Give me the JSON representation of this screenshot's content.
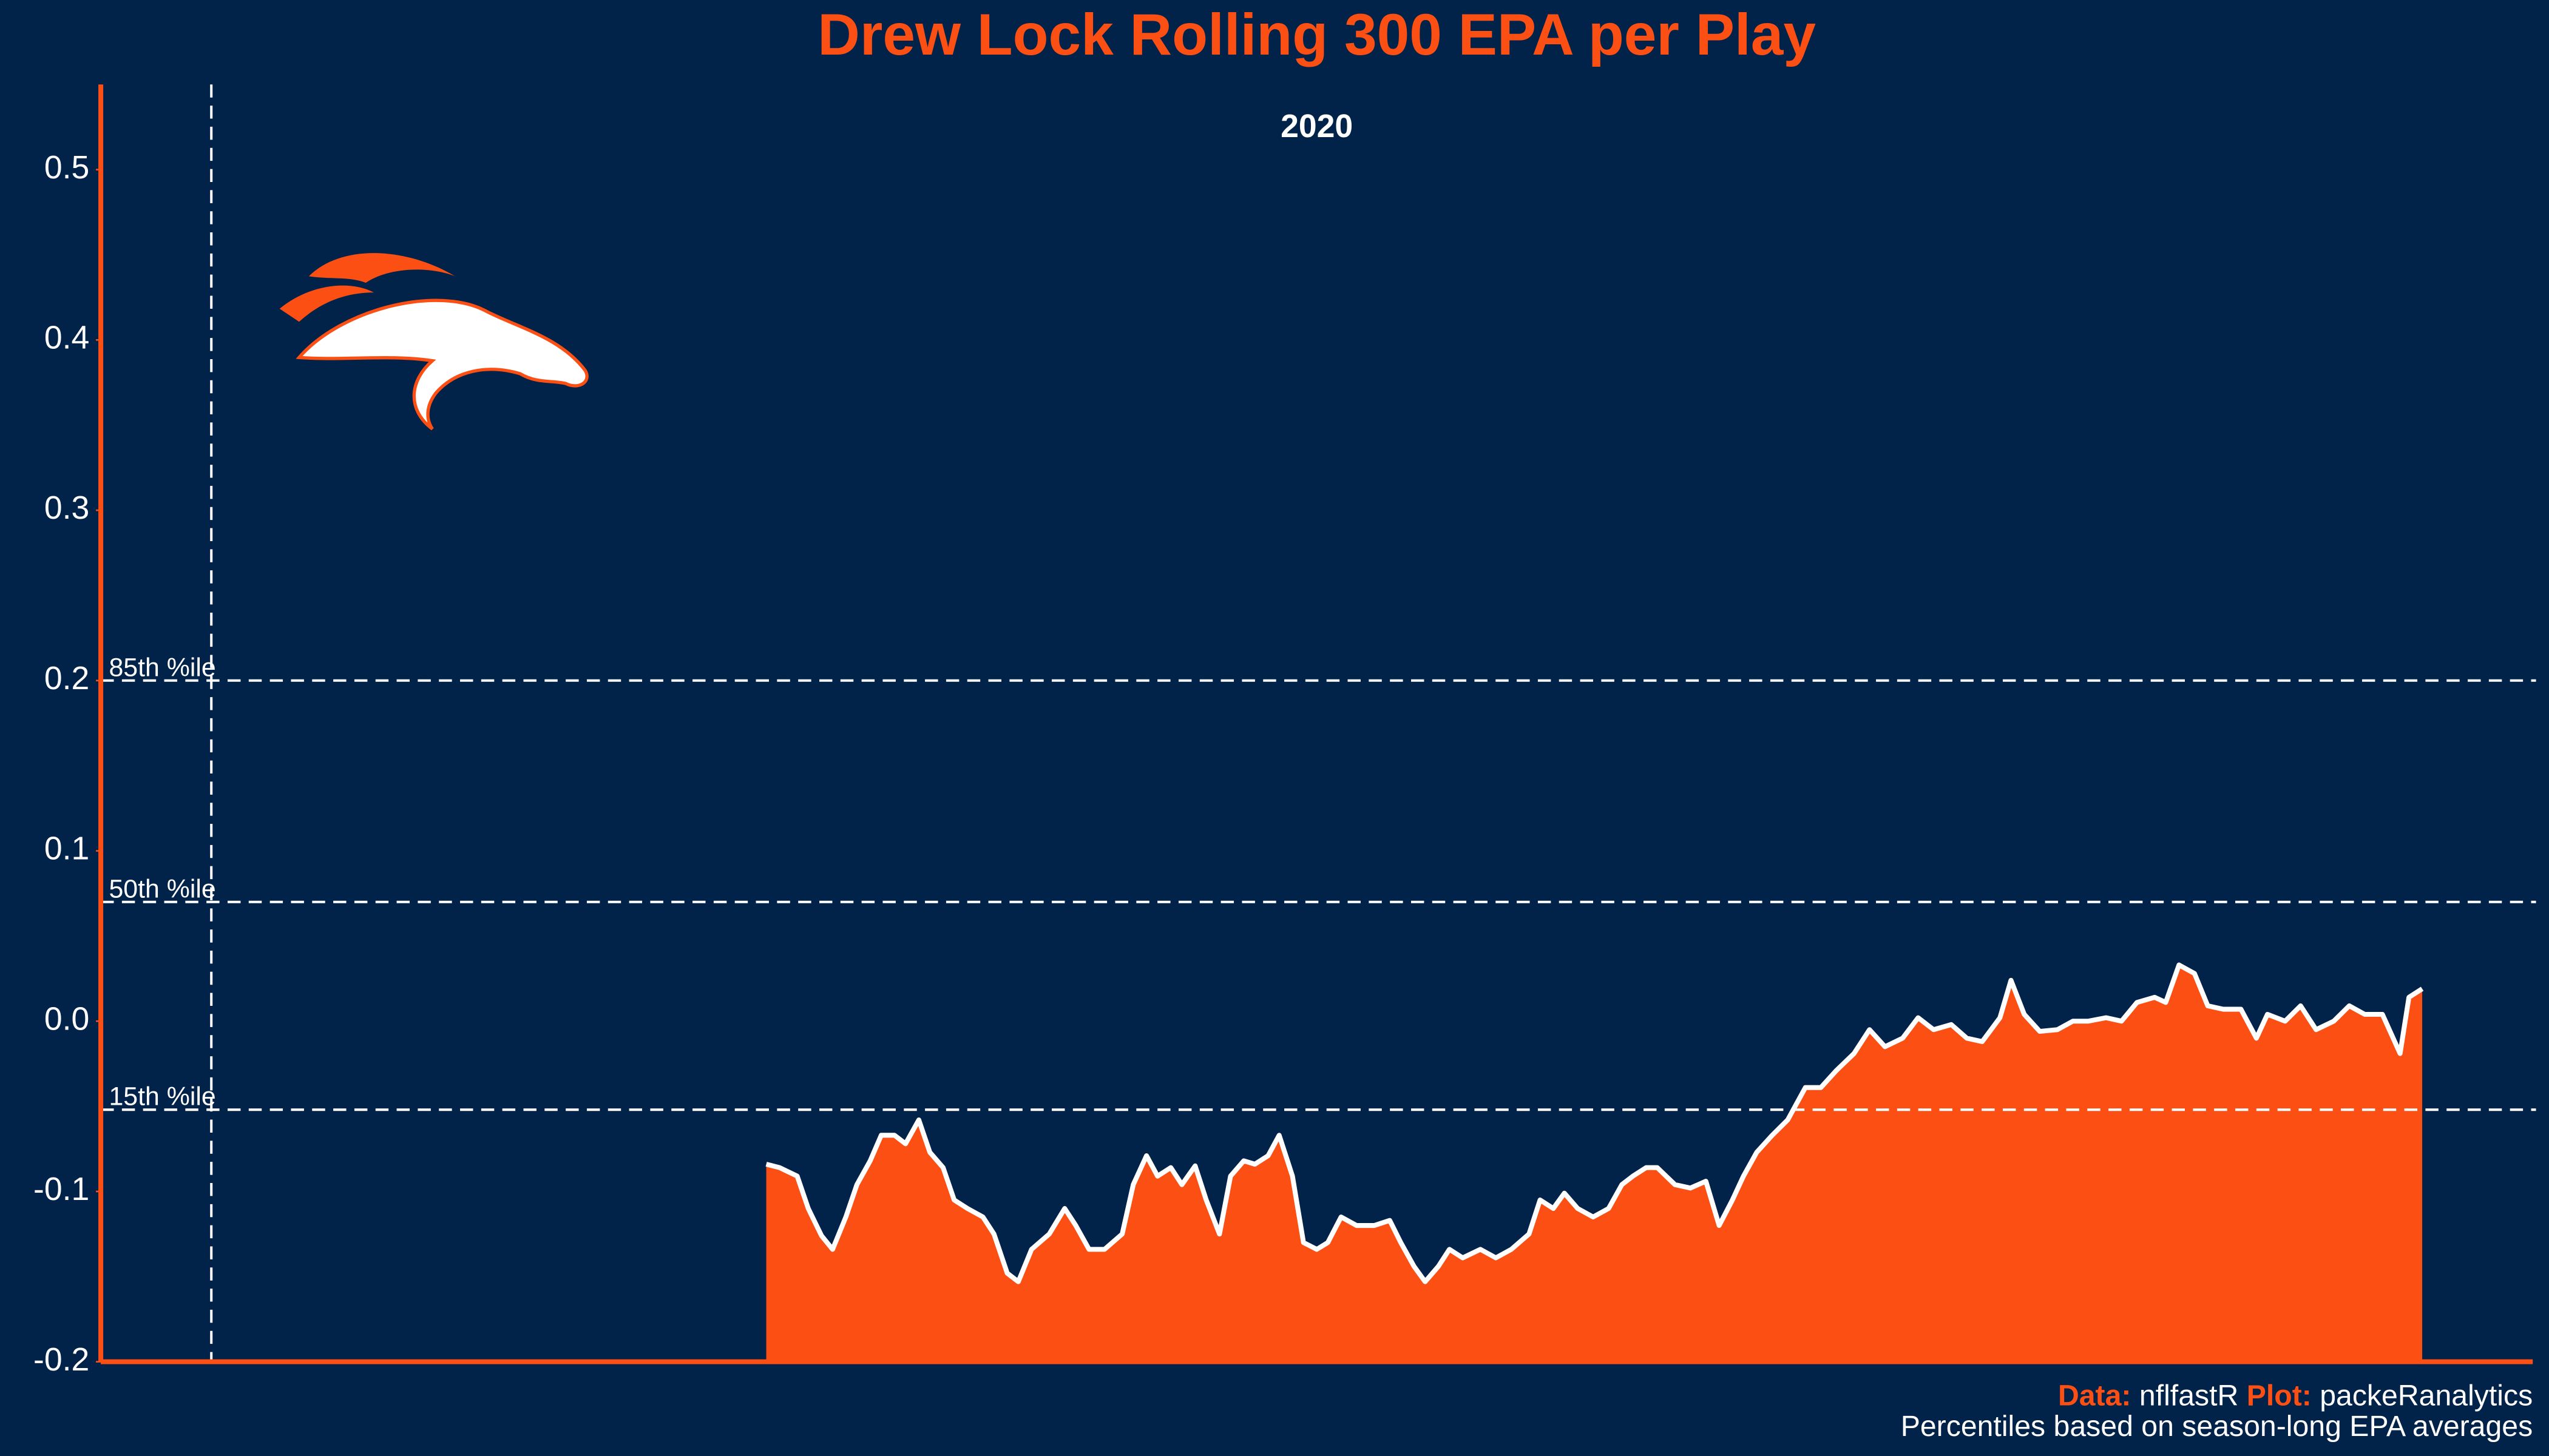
{
  "chart_data": {
    "type": "area",
    "title": "Drew Lock Rolling 300 EPA per Play",
    "subtitle": "2020",
    "background": "#01234a",
    "color": "#fb4f14",
    "line_color": "#ffffff",
    "axis_color": "#fb4f14",
    "x": [
      301,
      307,
      315,
      320,
      326,
      331,
      337,
      342,
      348,
      353,
      359,
      364,
      370,
      375,
      381,
      386,
      392,
      399,
      404,
      410,
      415,
      421,
      429,
      436,
      441,
      447,
      454,
      462,
      467,
      473,
      478,
      484,
      489,
      495,
      500,
      506,
      511,
      517,
      522,
      528,
      533,
      539,
      544,
      550,
      555,
      561,
      568,
      576,
      583,
      588,
      594,
      599,
      605,
      610,
      616,
      624,
      631,
      638,
      646,
      651,
      657,
      662,
      668,
      675,
      682,
      688,
      693,
      699,
      704,
      712,
      719,
      726,
      732,
      738,
      743,
      749,
      756,
      763,
      771,
      778,
      785,
      793,
      800,
      807,
      815,
      822,
      829,
      837,
      844,
      851,
      859,
      864,
      870,
      877,
      885,
      892,
      899,
      907,
      914,
      921,
      929,
      934,
      940,
      947,
      953,
      960,
      968,
      975,
      980,
      988,
      995,
      1002,
      1010,
      1017,
      1024,
      1032,
      1040,
      1044,
      1050
    ],
    "values": [
      -0.084,
      -0.086,
      -0.091,
      -0.11,
      -0.126,
      -0.134,
      -0.115,
      -0.096,
      -0.082,
      -0.067,
      -0.067,
      -0.072,
      -0.058,
      -0.077,
      -0.086,
      -0.105,
      -0.11,
      -0.115,
      -0.125,
      -0.148,
      -0.153,
      -0.134,
      -0.125,
      -0.11,
      -0.12,
      -0.134,
      -0.134,
      -0.125,
      -0.096,
      -0.079,
      -0.091,
      -0.086,
      -0.096,
      -0.085,
      -0.105,
      -0.125,
      -0.091,
      -0.082,
      -0.084,
      -0.079,
      -0.067,
      -0.091,
      -0.13,
      -0.134,
      -0.13,
      -0.115,
      -0.12,
      -0.12,
      -0.117,
      -0.13,
      -0.144,
      -0.153,
      -0.144,
      -0.134,
      -0.139,
      -0.134,
      -0.139,
      -0.134,
      -0.125,
      -0.105,
      -0.11,
      -0.101,
      -0.11,
      -0.115,
      -0.11,
      -0.096,
      -0.091,
      -0.086,
      -0.086,
      -0.096,
      -0.098,
      -0.094,
      -0.12,
      -0.105,
      -0.091,
      -0.077,
      -0.067,
      -0.058,
      -0.039,
      -0.039,
      -0.029,
      -0.019,
      -0.005,
      -0.015,
      -0.01,
      0.002,
      -0.005,
      -0.002,
      -0.01,
      -0.012,
      0.002,
      0.024,
      0.004,
      -0.006,
      -0.005,
      0.0,
      0.0,
      0.002,
      0.0,
      0.011,
      0.014,
      0.011,
      0.033,
      0.028,
      0.009,
      0.007,
      0.007,
      -0.01,
      0.004,
      0.0,
      0.009,
      -0.005,
      0.0,
      0.009,
      0.004,
      0.004,
      -0.019,
      0.014,
      0.019
    ],
    "xlim": [
      0,
      1100
    ],
    "ylim": [
      -0.2,
      0.55
    ],
    "yticks": [
      -0.2,
      -0.1,
      {
        "value": 0,
        "label": "0.0"
      },
      0.1,
      0.2,
      0.3,
      0.4,
      0.5
    ],
    "vline": 50,
    "reference_lines": [
      {
        "value": 0.2,
        "label": "85th %ile"
      },
      {
        "value": 0.07,
        "label": "50th %ile"
      },
      {
        "value": -0.052,
        "label": "15th %ile"
      }
    ],
    "caption": {
      "data_label": "Data:",
      "data_source": "nflfastR",
      "plot_label": "Plot:",
      "plot_source": "packeRanalytics",
      "note": "Percentiles based on season-long EPA averages"
    }
  }
}
